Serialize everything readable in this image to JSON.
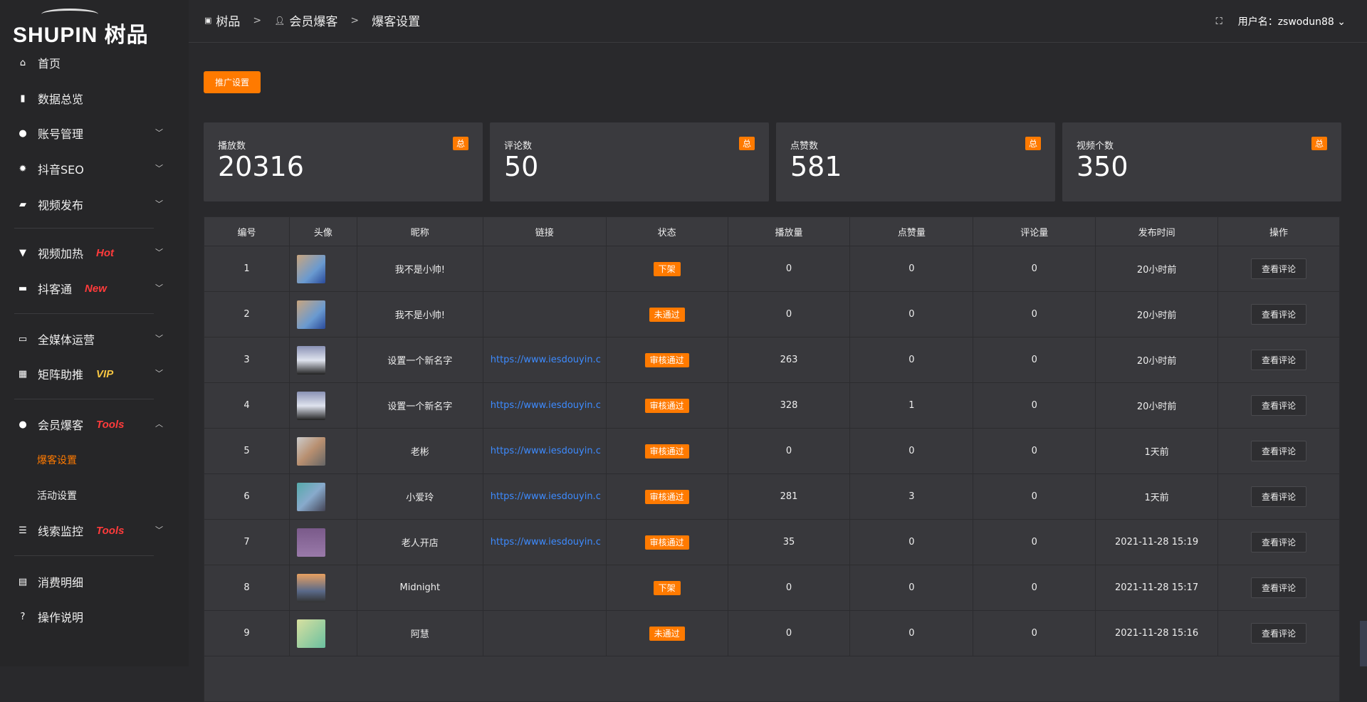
{
  "logo": {
    "text": "SHUPIN 树品"
  },
  "sidebar": {
    "items": [
      {
        "label": "首页",
        "icon": "home-icon"
      },
      {
        "label": "数据总览",
        "icon": "bar-chart-icon"
      },
      {
        "label": "账号管理",
        "icon": "user-icon",
        "chevron": true
      },
      {
        "label": "抖音SEO",
        "icon": "gear-icon",
        "chevron": true
      },
      {
        "label": "视频发布",
        "icon": "video-icon",
        "chevron": true
      },
      {
        "label": "视频加热",
        "icon": "flame-board-icon",
        "tag": "Hot",
        "tag_color": "#ff3b3b",
        "chevron": true
      },
      {
        "label": "抖客通",
        "icon": "chat-icon",
        "tag": "New",
        "tag_color": "#ff3b3b",
        "chevron": true
      },
      {
        "label": "全媒体运营",
        "icon": "monitor-icon",
        "chevron": true
      },
      {
        "label": "矩阵助推",
        "icon": "grid-icon",
        "tag": "VIP",
        "tag_color": "#f5c542",
        "chevron": true
      },
      {
        "label": "会员爆客",
        "icon": "user-icon",
        "tag": "Tools",
        "tag_color": "#ff3b3b",
        "chevron": true,
        "expanded": true
      },
      {
        "label": "线索监控",
        "icon": "sliders-icon",
        "tag": "Tools",
        "tag_color": "#ff3b3b",
        "chevron": true
      },
      {
        "label": "消费明细",
        "icon": "wallet-icon"
      },
      {
        "label": "操作说明",
        "icon": "help-icon"
      }
    ],
    "sub_items": [
      {
        "label": "爆客设置",
        "active": true
      },
      {
        "label": "活动设置"
      }
    ]
  },
  "header": {
    "breadcrumb": [
      "树品",
      "会员爆客",
      "爆客设置"
    ],
    "separator": ">",
    "user_label": "用户名：zswodun88"
  },
  "promo_button": "推广设置",
  "stats": [
    {
      "label": "播放数",
      "value": "20316",
      "badge": "总"
    },
    {
      "label": "评论数",
      "value": "50",
      "badge": "总"
    },
    {
      "label": "点赞数",
      "value": "581",
      "badge": "总"
    },
    {
      "label": "视频个数",
      "value": "350",
      "badge": "总"
    }
  ],
  "table": {
    "columns": [
      "编号",
      "头像",
      "昵称",
      "链接",
      "状态",
      "播放量",
      "点赞量",
      "评论量",
      "发布时间",
      "操作"
    ],
    "action_label": "查看评论",
    "rows": [
      {
        "id": "1",
        "nickname": "我不是小帅!",
        "link": "",
        "status": "下架",
        "plays": "0",
        "likes": "0",
        "comments": "0",
        "time": "20小时前"
      },
      {
        "id": "2",
        "nickname": "我不是小帅!",
        "link": "",
        "status": "未通过",
        "plays": "0",
        "likes": "0",
        "comments": "0",
        "time": "20小时前"
      },
      {
        "id": "3",
        "nickname": "设置一个新名字",
        "link": "https://www.iesdouyin.c",
        "status": "审核通过",
        "plays": "263",
        "likes": "0",
        "comments": "0",
        "time": "20小时前"
      },
      {
        "id": "4",
        "nickname": "设置一个新名字",
        "link": "https://www.iesdouyin.c",
        "status": "审核通过",
        "plays": "328",
        "likes": "1",
        "comments": "0",
        "time": "20小时前"
      },
      {
        "id": "5",
        "nickname": "老彬",
        "link": "https://www.iesdouyin.c",
        "status": "审核通过",
        "plays": "0",
        "likes": "0",
        "comments": "0",
        "time": "1天前"
      },
      {
        "id": "6",
        "nickname": "小爱玲",
        "link": "https://www.iesdouyin.c",
        "status": "审核通过",
        "plays": "281",
        "likes": "3",
        "comments": "0",
        "time": "1天前"
      },
      {
        "id": "7",
        "nickname": "老人开店",
        "link": "https://www.iesdouyin.c",
        "status": "审核通过",
        "plays": "35",
        "likes": "0",
        "comments": "0",
        "time": "2021-11-28 15:19"
      },
      {
        "id": "8",
        "nickname": "Midnight",
        "link": "",
        "status": "下架",
        "plays": "0",
        "likes": "0",
        "comments": "0",
        "time": "2021-11-28 15:17"
      },
      {
        "id": "9",
        "nickname": "阿慧",
        "link": "",
        "status": "未通过",
        "plays": "0",
        "likes": "0",
        "comments": "0",
        "time": "2021-11-28 15:16"
      }
    ]
  },
  "colors": {
    "accent": "#ff7a00",
    "link": "#3d8bff"
  }
}
